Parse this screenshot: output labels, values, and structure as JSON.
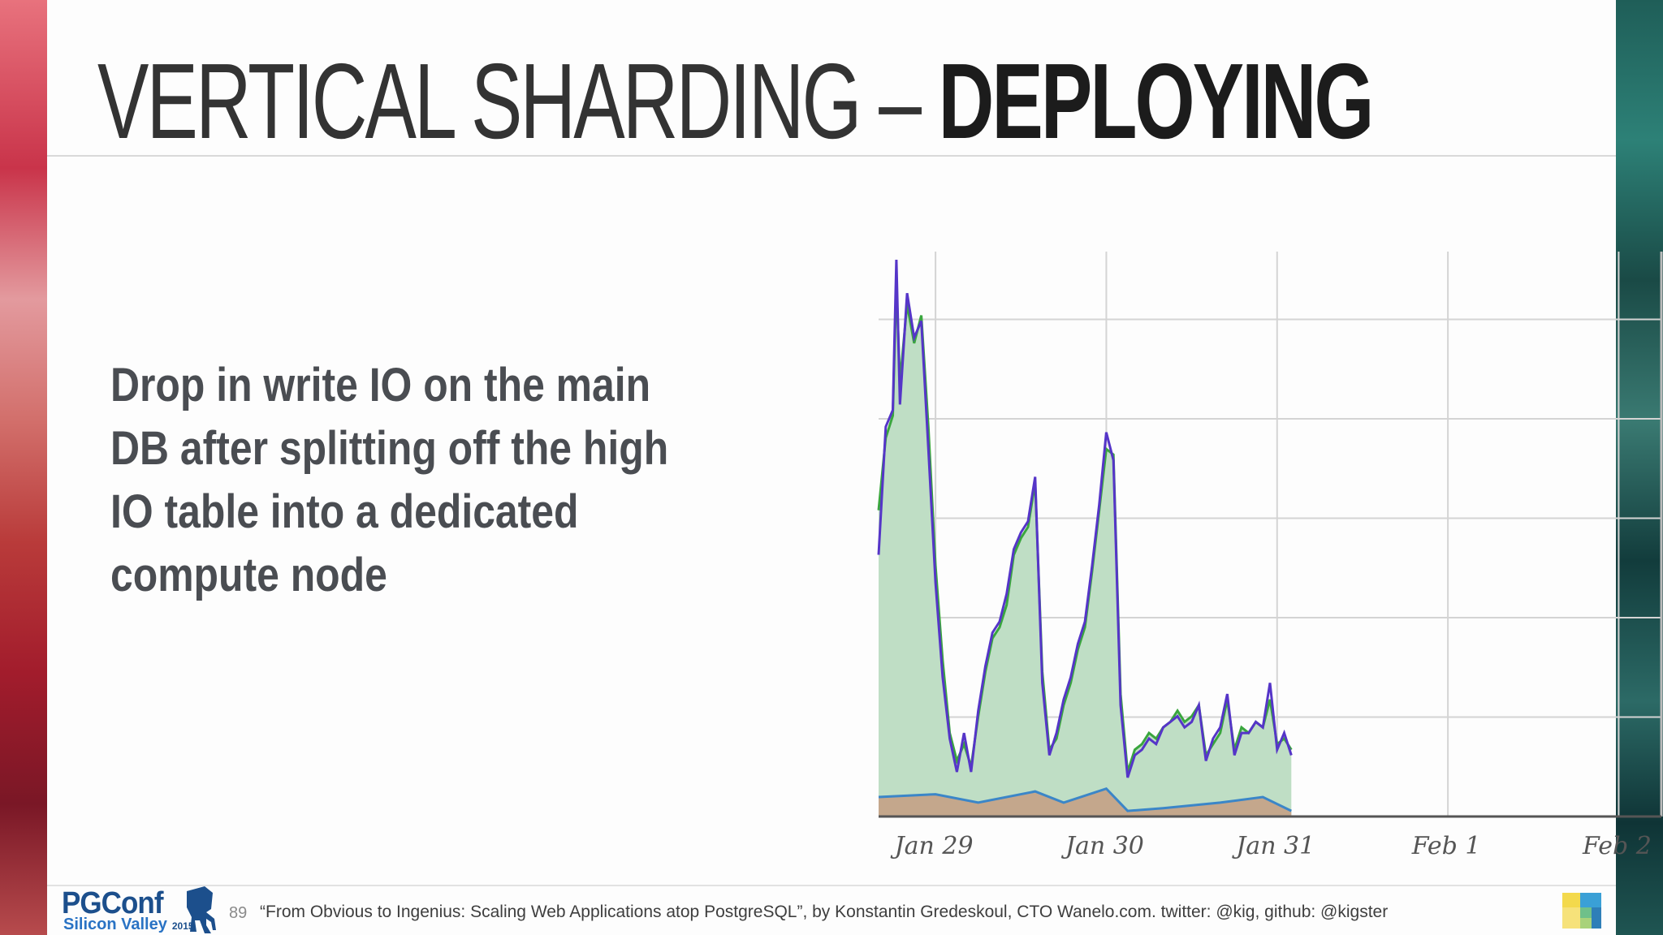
{
  "slide": {
    "title_light": "VERTICAL SHARDING",
    "title_dash": " – ",
    "title_bold": "DEPLOYING",
    "body": "Drop in write IO on the main DB after splitting off the high IO table into a dedicated compute node"
  },
  "footer": {
    "logo_main": "PGConf",
    "logo_sub": "Silicon Valley",
    "logo_year": "2015",
    "page_number": "89",
    "citation": "“From Obvious to Ingenius: Scaling Web Applications atop PostgreSQL”, by Konstantin Gredeskoul, CTO Wanelo.com. twitter: @kig, github: @kigster"
  },
  "colors": {
    "fill_green": "#bfdec5",
    "line_green": "#3aa63e",
    "line_purple": "#5535c8",
    "line_blue": "#3b86c8",
    "fill_brown": "#c4a78c",
    "grid": "#d4d4d4"
  },
  "chart_data": {
    "type": "area",
    "title": "",
    "xlabel": "",
    "ylabel": "",
    "x_ticks": [
      "Jan 29",
      "Jan 30",
      "Jan 31",
      "Feb 1",
      "Feb 2"
    ],
    "x_range": [
      "Jan 28 16:00",
      "Feb 2 06:00"
    ],
    "y_axis_labels_visible": false,
    "ylim": [
      0,
      100
    ],
    "grid": true,
    "legend": "none",
    "series": [
      {
        "color": "green-area",
        "points": [
          [
            "Jan 28 16:00",
            55
          ],
          [
            "Jan 28 17:00",
            68
          ],
          [
            "Jan 28 18:00",
            72
          ],
          [
            "Jan 28 18:30",
            96
          ],
          [
            "Jan 28 19:00",
            78
          ],
          [
            "Jan 28 20:00",
            92
          ],
          [
            "Jan 28 21:00",
            85
          ],
          [
            "Jan 28 22:00",
            90
          ],
          [
            "Jan 28 23:00",
            70
          ],
          [
            "Jan 29 00:00",
            45
          ],
          [
            "Jan 29 01:00",
            28
          ],
          [
            "Jan 29 02:00",
            15
          ],
          [
            "Jan 29 03:00",
            10
          ],
          [
            "Jan 29 04:00",
            13
          ],
          [
            "Jan 29 05:00",
            9
          ],
          [
            "Jan 29 06:00",
            18
          ],
          [
            "Jan 29 07:00",
            26
          ],
          [
            "Jan 29 08:00",
            32
          ],
          [
            "Jan 29 09:00",
            34
          ],
          [
            "Jan 29 10:00",
            38
          ],
          [
            "Jan 29 11:00",
            47
          ],
          [
            "Jan 29 12:00",
            50
          ],
          [
            "Jan 29 13:00",
            52
          ],
          [
            "Jan 29 14:00",
            60
          ],
          [
            "Jan 29 15:00",
            26
          ],
          [
            "Jan 29 16:00",
            12
          ],
          [
            "Jan 29 17:00",
            14
          ],
          [
            "Jan 29 18:00",
            20
          ],
          [
            "Jan 29 19:00",
            24
          ],
          [
            "Jan 29 20:00",
            30
          ],
          [
            "Jan 29 21:00",
            34
          ],
          [
            "Jan 29 22:00",
            44
          ],
          [
            "Jan 29 23:00",
            55
          ],
          [
            "Jan 30 00:00",
            66
          ],
          [
            "Jan 30 01:00",
            65
          ],
          [
            "Jan 30 02:00",
            22
          ],
          [
            "Jan 30 03:00",
            8
          ],
          [
            "Jan 30 04:00",
            12
          ],
          [
            "Jan 30 05:00",
            13
          ],
          [
            "Jan 30 06:00",
            15
          ],
          [
            "Jan 30 07:00",
            14
          ],
          [
            "Jan 30 08:00",
            16
          ],
          [
            "Jan 30 09:00",
            17
          ],
          [
            "Jan 30 10:00",
            19
          ],
          [
            "Jan 30 11:00",
            17
          ],
          [
            "Jan 30 12:00",
            18
          ],
          [
            "Jan 30 13:00",
            20
          ],
          [
            "Jan 30 14:00",
            11
          ],
          [
            "Jan 30 15:00",
            13
          ],
          [
            "Jan 30 16:00",
            15
          ],
          [
            "Jan 30 17:00",
            21
          ],
          [
            "Jan 30 18:00",
            12
          ],
          [
            "Jan 30 19:00",
            16
          ],
          [
            "Jan 30 20:00",
            15
          ],
          [
            "Jan 30 21:00",
            17
          ],
          [
            "Jan 30 22:00",
            16
          ],
          [
            "Jan 30 23:00",
            21
          ],
          [
            "Jan 31 00:00",
            13
          ],
          [
            "Jan 31 01:00",
            14
          ],
          [
            "Jan 31 02:00",
            12
          ]
        ]
      },
      {
        "color": "purple-line",
        "points": [
          [
            "Jan 28 16:00",
            47
          ],
          [
            "Jan 28 17:00",
            70
          ],
          [
            "Jan 28 18:00",
            73
          ],
          [
            "Jan 28 18:30",
            100
          ],
          [
            "Jan 28 19:00",
            74
          ],
          [
            "Jan 28 20:00",
            94
          ],
          [
            "Jan 28 21:00",
            86
          ],
          [
            "Jan 28 22:00",
            89
          ],
          [
            "Jan 28 23:00",
            66
          ],
          [
            "Jan 29 00:00",
            42
          ],
          [
            "Jan 29 01:00",
            25
          ],
          [
            "Jan 29 02:00",
            14
          ],
          [
            "Jan 29 03:00",
            8
          ],
          [
            "Jan 29 04:00",
            15
          ],
          [
            "Jan 29 05:00",
            8
          ],
          [
            "Jan 29 06:00",
            19
          ],
          [
            "Jan 29 07:00",
            27
          ],
          [
            "Jan 29 08:00",
            33
          ],
          [
            "Jan 29 09:00",
            35
          ],
          [
            "Jan 29 10:00",
            40
          ],
          [
            "Jan 29 11:00",
            48
          ],
          [
            "Jan 29 12:00",
            51
          ],
          [
            "Jan 29 13:00",
            53
          ],
          [
            "Jan 29 14:00",
            61
          ],
          [
            "Jan 29 15:00",
            24
          ],
          [
            "Jan 29 16:00",
            11
          ],
          [
            "Jan 29 17:00",
            15
          ],
          [
            "Jan 29 18:00",
            21
          ],
          [
            "Jan 29 19:00",
            25
          ],
          [
            "Jan 29 20:00",
            31
          ],
          [
            "Jan 29 21:00",
            35
          ],
          [
            "Jan 29 22:00",
            45
          ],
          [
            "Jan 29 23:00",
            56
          ],
          [
            "Jan 30 00:00",
            69
          ],
          [
            "Jan 30 01:00",
            64
          ],
          [
            "Jan 30 02:00",
            20
          ],
          [
            "Jan 30 03:00",
            7
          ],
          [
            "Jan 30 04:00",
            11
          ],
          [
            "Jan 30 05:00",
            12
          ],
          [
            "Jan 30 06:00",
            14
          ],
          [
            "Jan 30 07:00",
            13
          ],
          [
            "Jan 30 08:00",
            16
          ],
          [
            "Jan 30 09:00",
            17
          ],
          [
            "Jan 30 10:00",
            18
          ],
          [
            "Jan 30 11:00",
            16
          ],
          [
            "Jan 30 12:00",
            17
          ],
          [
            "Jan 30 13:00",
            20
          ],
          [
            "Jan 30 14:00",
            10
          ],
          [
            "Jan 30 15:00",
            14
          ],
          [
            "Jan 30 16:00",
            16
          ],
          [
            "Jan 30 17:00",
            22
          ],
          [
            "Jan 30 18:00",
            11
          ],
          [
            "Jan 30 19:00",
            15
          ],
          [
            "Jan 30 20:00",
            15
          ],
          [
            "Jan 30 21:00",
            17
          ],
          [
            "Jan 30 22:00",
            16
          ],
          [
            "Jan 30 23:00",
            24
          ],
          [
            "Jan 31 00:00",
            12
          ],
          [
            "Jan 31 01:00",
            15
          ],
          [
            "Jan 31 02:00",
            11
          ]
        ]
      },
      {
        "color": "blue-line-baseline",
        "points": [
          [
            "Jan 28 16:00",
            3.5
          ],
          [
            "Jan 29 00:00",
            4
          ],
          [
            "Jan 29 06:00",
            2.5
          ],
          [
            "Jan 29 14:00",
            4.5
          ],
          [
            "Jan 29 18:00",
            2.5
          ],
          [
            "Jan 30 00:00",
            5
          ],
          [
            "Jan 30 03:00",
            1
          ],
          [
            "Jan 30 08:00",
            1.5
          ],
          [
            "Jan 30 16:00",
            2.5
          ],
          [
            "Jan 30 22:00",
            3.5
          ],
          [
            "Jan 31 02:00",
            1
          ]
        ]
      }
    ]
  }
}
